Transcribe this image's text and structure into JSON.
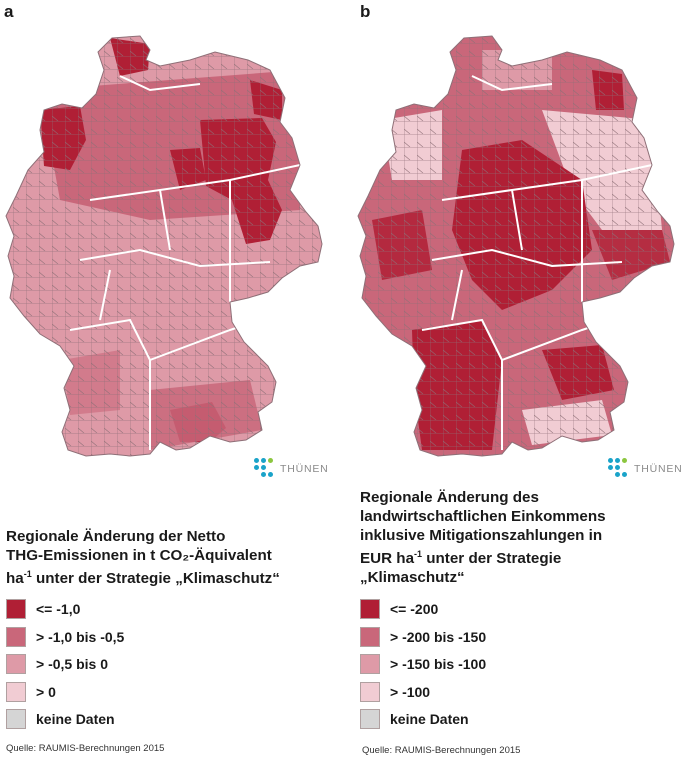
{
  "panels": [
    {
      "letter": "a",
      "legend_title_lines": [
        "Regionale Änderung der Netto",
        "THG-Emissionen in t CO₂-Äquivalent"
      ],
      "legend_title_unit_prefix": "ha",
      "legend_title_unit_exp": "-1",
      "legend_title_unit_suffix": " unter der Strategie „Klimaschutz“",
      "legend": [
        {
          "label": "<= -1,0",
          "color": "#b01f35"
        },
        {
          "label": "> -1,0 bis -0,5",
          "color": "#c9677a"
        },
        {
          "label": "> -0,5 bis  0",
          "color": "#de9aa7"
        },
        {
          "label": ">  0",
          "color": "#f1ccd3"
        },
        {
          "label": "keine Daten",
          "color": "#d5d5d5"
        }
      ],
      "source": "Quelle: RAUMIS-Berechnungen 2015",
      "logo_text": "THÜNEN"
    },
    {
      "letter": "b",
      "legend_title_lines": [
        "Regionale Änderung des",
        "landwirtschaftlichen Einkommens",
        "inklusive Mitigationszahlungen in"
      ],
      "legend_title_unit_prefix": "EUR ha",
      "legend_title_unit_exp": "-1",
      "legend_title_unit_suffix": " unter der Strategie",
      "legend_title_last_line": "„Klimaschutz“",
      "legend": [
        {
          "label": "<= -200",
          "color": "#b01f35"
        },
        {
          "label": "> -200 bis -150",
          "color": "#c9677a"
        },
        {
          "label": "> -150 bis -100",
          "color": "#de9aa7"
        },
        {
          "label": "> -100",
          "color": "#f1ccd3"
        },
        {
          "label": "keine Daten",
          "color": "#d5d5d5"
        }
      ],
      "source": "Quelle: RAUMIS-Berechnungen 2015",
      "logo_text": "THÜNEN"
    }
  ],
  "map_colors": {
    "class1": "#b01f35",
    "class2": "#c9677a",
    "class3": "#de9aa7",
    "class4": "#f1ccd3",
    "district_line": "#8e6f77",
    "state_line": "#ffffff"
  }
}
